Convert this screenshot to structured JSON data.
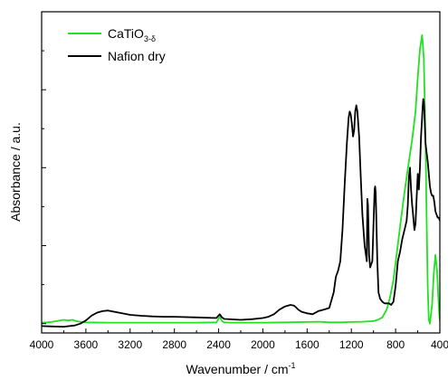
{
  "chart_data": {
    "type": "line",
    "title": "",
    "xlabel": "Wavenumber / cm",
    "xlabel_superscript": "-1",
    "ylabel": "Absorbance / a.u.",
    "xlim": [
      4000,
      400
    ],
    "x_reversed": true,
    "ylim": [
      -0.03,
      1.0
    ],
    "y_ticklabels_shown": false,
    "x_ticks": [
      4000,
      3600,
      3200,
      2800,
      2400,
      2000,
      1600,
      1200,
      800,
      400
    ],
    "x_tick_labels": [
      "4000",
      "3600",
      "3200",
      "2800",
      "2400",
      "2000",
      "1600",
      "1200",
      "800",
      "400"
    ],
    "y_ticks": [
      0,
      0.25,
      0.5,
      0.75,
      1.0
    ],
    "grid": false,
    "legend": "top-left",
    "series": [
      {
        "name": "CaTiO",
        "name_subscript": "3-δ",
        "color": "#22e022",
        "x": [
          4000,
          3950,
          3900,
          3850,
          3800,
          3760,
          3720,
          3690,
          3650,
          3600,
          3400,
          3200,
          3000,
          2800,
          2600,
          2420,
          2390,
          2370,
          2350,
          2300,
          2000,
          1800,
          1600,
          1500,
          1400,
          1300,
          1200,
          1100,
          1000,
          960,
          920,
          880,
          850,
          820,
          800,
          760,
          720,
          680,
          650,
          620,
          600,
          580,
          560,
          545,
          530,
          520,
          510,
          500,
          490,
          470,
          455,
          440,
          425,
          415,
          405,
          400
        ],
        "y": [
          0.003,
          0.004,
          0.006,
          0.009,
          0.012,
          0.01,
          0.012,
          0.008,
          0.006,
          0.004,
          0.003,
          0.003,
          0.003,
          0.003,
          0.003,
          0.004,
          0.022,
          0.008,
          0.004,
          0.003,
          0.003,
          0.004,
          0.005,
          0.006,
          0.004,
          0.004,
          0.005,
          0.006,
          0.008,
          0.012,
          0.02,
          0.045,
          0.085,
          0.14,
          0.195,
          0.31,
          0.42,
          0.52,
          0.59,
          0.68,
          0.79,
          0.88,
          0.925,
          0.85,
          0.6,
          0.35,
          0.12,
          0.012,
          0.0,
          0.06,
          0.16,
          0.22,
          0.17,
          0.09,
          0.03,
          0.01
        ]
      },
      {
        "name": "Nafion dry",
        "color": "#000000",
        "x": [
          4000,
          3900,
          3800,
          3700,
          3650,
          3600,
          3550,
          3500,
          3450,
          3400,
          3300,
          3200,
          3100,
          3000,
          2900,
          2800,
          2600,
          2420,
          2390,
          2370,
          2350,
          2200,
          2100,
          2000,
          1950,
          1900,
          1850,
          1800,
          1750,
          1720,
          1700,
          1680,
          1650,
          1620,
          1600,
          1550,
          1500,
          1450,
          1400,
          1360,
          1340,
          1320,
          1300,
          1280,
          1260,
          1240,
          1225,
          1215,
          1205,
          1195,
          1185,
          1175,
          1165,
          1155,
          1145,
          1130,
          1115,
          1100,
          1080,
          1060,
          1055,
          1050,
          1045,
          1040,
          1030,
          1010,
          990,
          985,
          980,
          975,
          965,
          955,
          940,
          920,
          900,
          880,
          860,
          840,
          820,
          800,
          780,
          760,
          740,
          720,
          700,
          690,
          680,
          670,
          660,
          650,
          645,
          640,
          630,
          620,
          610,
          600,
          590,
          580,
          570,
          560,
          555,
          550,
          545,
          540,
          535,
          530,
          520,
          510,
          500,
          490,
          480,
          470,
          460,
          450,
          440,
          430,
          420,
          410,
          400
        ],
        "y": [
          -0.008,
          -0.009,
          -0.01,
          -0.006,
          0.0,
          0.01,
          0.025,
          0.035,
          0.04,
          0.042,
          0.035,
          0.028,
          0.025,
          0.023,
          0.022,
          0.022,
          0.02,
          0.018,
          0.03,
          0.02,
          0.015,
          0.012,
          0.014,
          0.018,
          0.022,
          0.03,
          0.045,
          0.055,
          0.06,
          0.058,
          0.052,
          0.045,
          0.038,
          0.035,
          0.033,
          0.03,
          0.04,
          0.045,
          0.05,
          0.1,
          0.15,
          0.17,
          0.2,
          0.3,
          0.45,
          0.58,
          0.66,
          0.68,
          0.67,
          0.64,
          0.6,
          0.62,
          0.68,
          0.7,
          0.68,
          0.6,
          0.47,
          0.35,
          0.25,
          0.2,
          0.4,
          0.38,
          0.3,
          0.22,
          0.18,
          0.2,
          0.43,
          0.44,
          0.42,
          0.35,
          0.2,
          0.1,
          0.08,
          0.07,
          0.065,
          0.065,
          0.065,
          0.06,
          0.07,
          0.12,
          0.2,
          0.23,
          0.27,
          0.3,
          0.33,
          0.38,
          0.47,
          0.5,
          0.43,
          0.38,
          0.36,
          0.34,
          0.3,
          0.32,
          0.4,
          0.48,
          0.43,
          0.5,
          0.6,
          0.66,
          0.7,
          0.72,
          0.71,
          0.68,
          0.63,
          0.58,
          0.55,
          0.52,
          0.48,
          0.44,
          0.42,
          0.41,
          0.41,
          0.39,
          0.36,
          0.35,
          0.34,
          0.34,
          0.33
        ]
      }
    ]
  }
}
